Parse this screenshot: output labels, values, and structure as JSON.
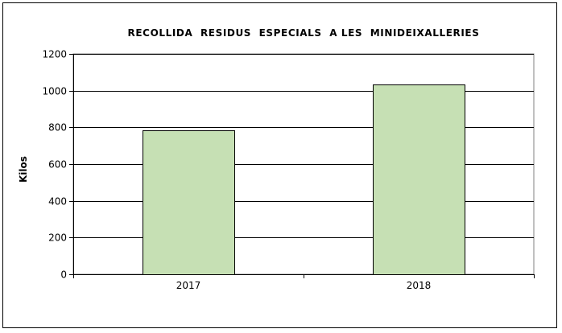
{
  "chart_data": {
    "type": "bar",
    "title": "RECOLLIDA  RESIDUS  ESPECIALS  A LES  MINIDEIXALLERIES",
    "xlabel": "",
    "ylabel": "Kilos",
    "categories": [
      "2017",
      "2018"
    ],
    "values": [
      786,
      1033
    ],
    "ylim": [
      0,
      1200
    ],
    "yticks": [
      0,
      200,
      400,
      600,
      800,
      1000,
      1200
    ],
    "grid": true,
    "legend": "none",
    "bar_color": "#c6e0b4"
  }
}
